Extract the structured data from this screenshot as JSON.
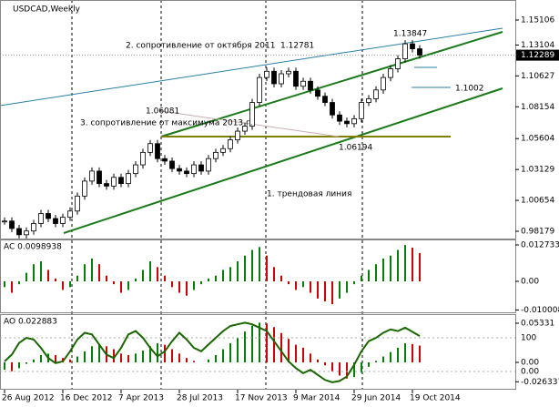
{
  "chart_data": [
    {
      "type": "candlestick",
      "title": "USDCAD,Weekly",
      "categories": [
        "26 Aug 2012",
        null,
        null,
        null,
        null,
        null,
        null,
        null,
        "16 Dec 2012",
        null,
        null,
        null,
        null,
        null,
        null,
        null,
        "7 Apr 2013",
        null,
        null,
        null,
        null,
        null,
        null,
        null,
        "28 Jul 2013",
        null,
        null,
        null,
        null,
        null,
        null,
        null,
        "17 Nov 2013",
        null,
        null,
        null,
        null,
        null,
        null,
        null,
        "9 Mar 2014",
        null,
        null,
        null,
        null,
        null,
        null,
        null,
        "29 Jun 2014",
        null,
        null,
        null,
        null,
        null,
        null,
        null,
        "19 Oct 2014",
        null
      ],
      "values": [
        0.99,
        0.984,
        0.979,
        0.982,
        0.988,
        0.996,
        0.992,
        0.988,
        0.993,
        0.998,
        1.01,
        1.022,
        1.03,
        1.02,
        1.018,
        1.025,
        1.02,
        1.028,
        1.035,
        1.045,
        1.052,
        1.04,
        1.038,
        1.032,
        1.03,
        1.028,
        1.035,
        1.03,
        1.04,
        1.045,
        1.048,
        1.055,
        1.062,
        1.066,
        1.085,
        1.105,
        1.11,
        1.1,
        1.108,
        1.11,
        1.098,
        1.102,
        1.095,
        1.09,
        1.085,
        1.075,
        1.07,
        1.068,
        1.072,
        1.085,
        1.088,
        1.095,
        1.105,
        1.112,
        1.12,
        1.132,
        1.128,
        1.123
      ],
      "up_color": "#ffffff",
      "down_color": "#000000",
      "ylim": [
        0.97595,
        1.16711
      ],
      "yticks": [
        1.15106,
        1.13104,
        1.10627,
        1.08154,
        1.05604,
        1.03129,
        1.00654,
        0.98179
      ],
      "last_price": 1.12289,
      "annotations": [
        "2. сопротивление от октября 2011",
        "3. сопротивление от максимума 2013 г.",
        "1. трендовая линия"
      ],
      "price_labels": [
        1.12781,
        1.13847,
        1.06081,
        1.06194,
        1.1002
      ]
    },
    {
      "type": "histogram",
      "title": "AC 0.0098938",
      "values": [
        -0.002,
        -0.004,
        -0.001,
        0.003,
        0.006,
        0.007,
        0.004,
        0.001,
        -0.003,
        -0.002,
        0.002,
        0.006,
        0.008,
        0.006,
        0.002,
        -0.001,
        -0.004,
        -0.003,
        0.001,
        0.004,
        0.007,
        0.005,
        0.002,
        -0.002,
        -0.004,
        -0.005,
        -0.003,
        -0.001,
        0.001,
        0.002,
        0.004,
        0.005,
        0.007,
        0.009,
        0.011,
        0.012,
        0.009,
        0.005,
        0.002,
        -0.001,
        -0.003,
        -0.002,
        -0.004,
        -0.006,
        -0.007,
        -0.008,
        -0.006,
        -0.004,
        -0.001,
        0.002,
        0.004,
        0.006,
        0.008,
        0.009,
        0.011,
        0.0127,
        0.0118,
        0.0098938
      ],
      "up_color": "#008000",
      "down_color": "#cc0000",
      "ylim": [
        -0.010825,
        0.01433
      ],
      "yticks": [
        0.012733,
        {
          "value": 0,
          "label": "0.00"
        },
        -0.010008
      ]
    },
    {
      "type": "histogram",
      "title": "AO 0.022883",
      "values": [
        -0.01,
        -0.012,
        -0.008,
        -0.002,
        0.004,
        0.01,
        0.012,
        0.01,
        0.006,
        0.004,
        0.008,
        0.015,
        0.022,
        0.025,
        0.022,
        0.018,
        0.012,
        0.01,
        0.012,
        0.016,
        0.022,
        0.026,
        0.024,
        0.018,
        0.012,
        0.006,
        0.002,
        0.0,
        0.004,
        0.01,
        0.018,
        0.026,
        0.034,
        0.042,
        0.05,
        0.054,
        0.053,
        0.048,
        0.04,
        0.032,
        0.024,
        0.02,
        0.012,
        0.004,
        -0.004,
        -0.012,
        -0.018,
        -0.022,
        -0.02,
        -0.014,
        -0.006,
        0.002,
        0.008,
        0.014,
        0.02,
        0.026,
        0.025,
        0.022883
      ],
      "up_color": "#008000",
      "down_color": "#cc0000",
      "ylim": [
        -0.03717,
        0.06446
      ],
      "yticks": [
        0.05331,
        {
          "value": 0,
          "label": "0.00"
        },
        -0.026337
      ],
      "line": {
        "axis": "y2",
        "color": "#1a6600",
        "values": [
          30,
          50,
          85,
          100,
          95,
          70,
          40,
          25,
          30,
          60,
          95,
          115,
          110,
          80,
          50,
          40,
          70,
          110,
          120,
          100,
          70,
          45,
          60,
          90,
          115,
          95,
          70,
          60,
          80,
          100,
          120,
          135,
          140,
          145,
          140,
          130,
          120,
          90,
          60,
          30,
          10,
          -5,
          5,
          -10,
          -25,
          -32,
          -28,
          -15,
          20,
          60,
          90,
          100,
          115,
          125,
          120,
          130,
          118,
          105
        ]
      },
      "y2lim": [
        -54,
        167.6
      ],
      "y2ticks": [
        100,
        {
          "value": 0,
          "label": "0.00"
        }
      ]
    }
  ]
}
